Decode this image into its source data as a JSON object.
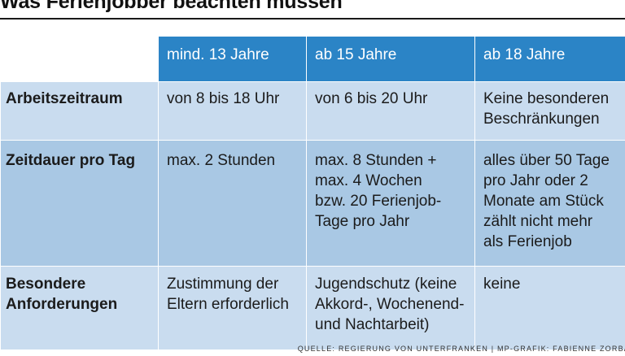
{
  "title": "Was Ferienjobber beachten müssen",
  "table": {
    "columns": [
      "",
      "mind. 13 Jahre",
      "ab 15 Jahre",
      "ab 18 Jahre"
    ],
    "rows": [
      {
        "label": "Arbeitszeitraum",
        "cells": [
          "von 8 bis 18 Uhr",
          "von 6 bis 20 Uhr",
          "Keine besonderen\nBeschränkungen"
        ]
      },
      {
        "label": "Zeitdauer pro Tag",
        "cells": [
          "max. 2 Stunden",
          "max. 8 Stunden +\nmax. 4 Wochen\nbzw. 20 Ferienjob-\nTage pro Jahr",
          "alles über 50 Tage\npro Jahr oder 2\nMonate am Stück\nzählt nicht mehr\nals Ferienjob"
        ]
      },
      {
        "label": "Besondere\nAnforderungen",
        "cells": [
          "Zustimmung der\nEltern erforderlich",
          "Jugendschutz (keine\nAkkord-, Wochenend-\nund Nachtarbeit)",
          "keine"
        ]
      }
    ]
  },
  "source": "QUELLE: REGIERUNG VON UNTERFRANKEN | MP-GRAFIK: FABIENNE ZORBA",
  "colors": {
    "header_blue": "#2b84c6",
    "row_light": "#c9dcef",
    "row_medium": "#a9c8e4"
  }
}
